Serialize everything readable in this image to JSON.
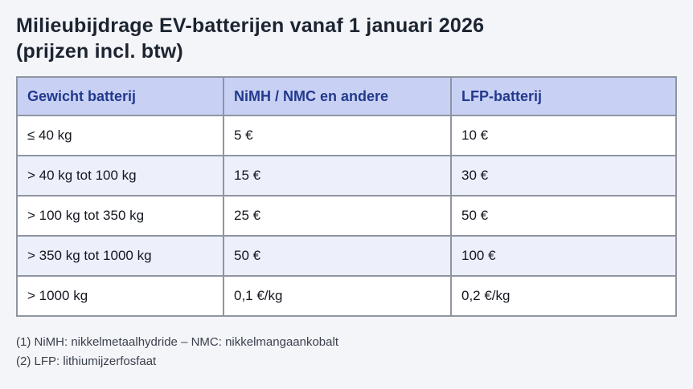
{
  "title": {
    "line1": "Milieubijdrage EV-batterijen vanaf 1 januari 2026",
    "line2": "(prijzen incl. btw)"
  },
  "table": {
    "headers": {
      "weight": "Gewicht batterij",
      "nimh": "NiMH / NMC en andere",
      "lfp": "LFP-batterij"
    },
    "rows": [
      {
        "weight": "≤ 40 kg",
        "nimh": "5 €",
        "lfp": "10 €"
      },
      {
        "weight": "> 40 kg tot 100 kg",
        "nimh": "15 €",
        "lfp": "30 €"
      },
      {
        "weight": "> 100 kg tot 350 kg",
        "nimh": "25 €",
        "lfp": "50 €"
      },
      {
        "weight": "> 350 kg tot 1000 kg",
        "nimh": "50 €",
        "lfp": "100 €"
      },
      {
        "weight": "> 1000 kg",
        "nimh": "0,1 €/kg",
        "lfp": "0,2 €/kg"
      }
    ]
  },
  "footnotes": [
    "(1) NiMH: nikkelmetaalhydride – NMC: nikkelmangaankobalt",
    "(2) LFP: lithiumijzerfosfaat"
  ],
  "colors": {
    "page_background": "#f4f5f8",
    "header_background": "#c8d1f4",
    "header_text": "#23398d",
    "alt_row_background": "#edeffb",
    "border": "#8f95a0",
    "title_text": "#1c2431",
    "cell_text": "#14171f",
    "footnote_text": "#3a414e"
  }
}
